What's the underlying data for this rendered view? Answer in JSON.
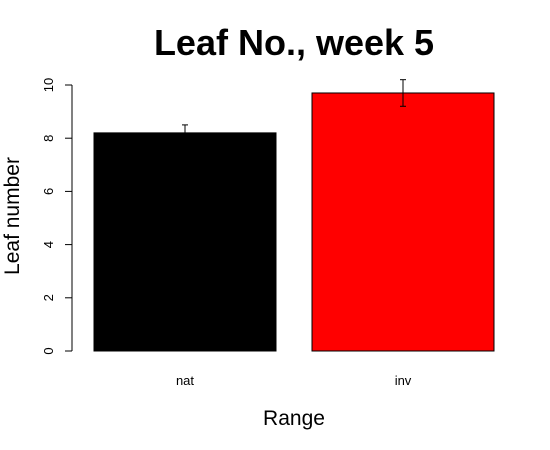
{
  "chart_data": {
    "type": "bar",
    "title": "Leaf No., week 5",
    "xlabel": "Range",
    "ylabel": "Leaf number",
    "categories": [
      "nat",
      "inv"
    ],
    "values": [
      8.2,
      9.7
    ],
    "error": [
      0.3,
      0.5
    ],
    "colors": [
      "#000000",
      "#ff0000"
    ],
    "ylim": [
      0,
      10
    ],
    "yticks": [
      0,
      2,
      4,
      6,
      8,
      10
    ],
    "grid": false,
    "legend": "none"
  }
}
